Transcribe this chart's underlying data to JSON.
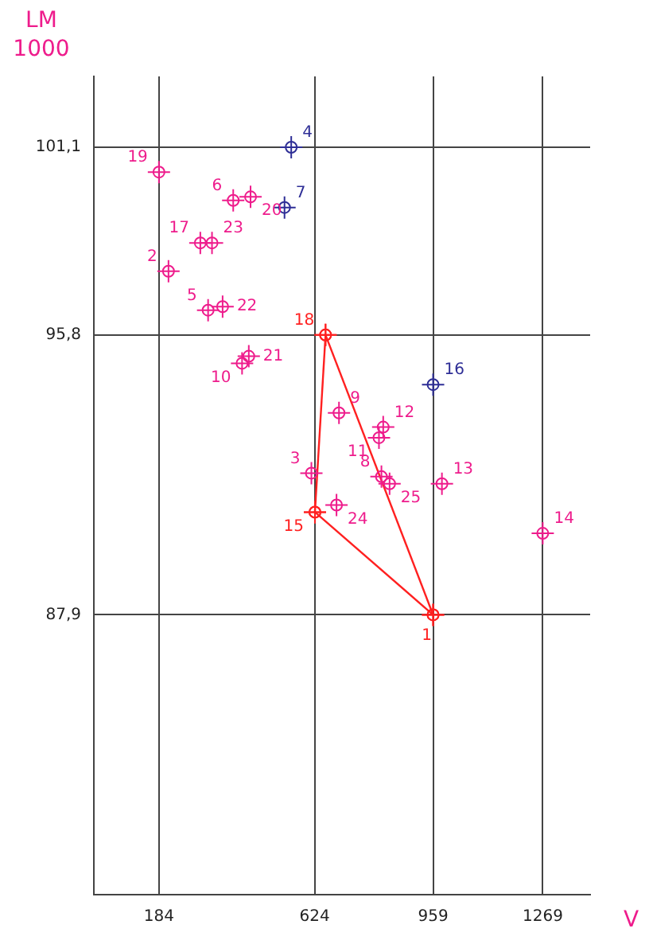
{
  "chart_data": {
    "type": "scatter",
    "xlabel": "V",
    "ylabel": "LM 1000",
    "xlim": [
      0,
      1403
    ],
    "ylim": [
      80,
      103.1
    ],
    "xticks": [
      184,
      624,
      959,
      1269
    ],
    "yticks": [
      {
        "value": 87.9,
        "label": "87,9"
      },
      {
        "value": 95.8,
        "label": "95,8"
      },
      {
        "value": 101.1,
        "label": "101,1"
      }
    ],
    "grid": true,
    "legend": false,
    "marker": "circle",
    "series": [
      {
        "color": "#ee1c8c",
        "x": [
          211,
          615,
          323,
          394,
          693,
          419,
          806,
          818,
          813,
          984,
          1269,
          301,
          184,
          443,
          438,
          364,
          334,
          686,
          836
        ],
        "values": [
          97.6,
          91.9,
          96.5,
          99.6,
          93.6,
          95.0,
          92.9,
          93.2,
          91.8,
          91.6,
          90.2,
          98.4,
          100.4,
          99.7,
          95.2,
          96.6,
          98.4,
          91.0,
          91.6
        ]
      },
      {
        "color": "#2e2e96",
        "x": [
          558,
          539,
          959
        ],
        "values": [
          101.1,
          99.4,
          94.4
        ]
      },
      {
        "type": "line",
        "color": "#ff2020",
        "x": [
          655,
          959
        ],
        "values": [
          95.8,
          87.9
        ]
      },
      {
        "type": "line",
        "color": "#ff2020",
        "x": [
          625,
          959
        ],
        "values": [
          90.8,
          87.9
        ]
      },
      {
        "type": "line",
        "color": "#ff2020",
        "x": [
          625,
          655
        ],
        "values": [
          90.8,
          95.8
        ]
      }
    ],
    "annotations": [
      {
        "text": "1",
        "x": 959,
        "y": 87.9
      },
      {
        "text": "2",
        "x": 211,
        "y": 97.6
      },
      {
        "text": "3",
        "x": 615,
        "y": 91.9
      },
      {
        "text": "4",
        "x": 558,
        "y": 101.1
      },
      {
        "text": "5",
        "x": 323,
        "y": 96.5
      },
      {
        "text": "6",
        "x": 394,
        "y": 99.6
      },
      {
        "text": "7",
        "x": 539,
        "y": 99.4
      },
      {
        "text": "8",
        "x": 813,
        "y": 91.8
      },
      {
        "text": "9",
        "x": 693,
        "y": 93.6
      },
      {
        "text": "10",
        "x": 419,
        "y": 95.0
      },
      {
        "text": "11",
        "x": 806,
        "y": 92.9
      },
      {
        "text": "12",
        "x": 818,
        "y": 93.2
      },
      {
        "text": "13",
        "x": 984,
        "y": 91.6
      },
      {
        "text": "14",
        "x": 1269,
        "y": 90.2
      },
      {
        "text": "15",
        "x": 625,
        "y": 90.8
      },
      {
        "text": "16",
        "x": 959,
        "y": 94.4
      },
      {
        "text": "17",
        "x": 301,
        "y": 98.4
      },
      {
        "text": "18",
        "x": 655,
        "y": 95.8
      },
      {
        "text": "19",
        "x": 184,
        "y": 100.4
      },
      {
        "text": "20",
        "x": 443,
        "y": 99.7
      },
      {
        "text": "21",
        "x": 438,
        "y": 95.2
      },
      {
        "text": "22",
        "x": 364,
        "y": 96.6
      },
      {
        "text": "23",
        "x": 334,
        "y": 98.4
      },
      {
        "text": "24",
        "x": 686,
        "y": 91.0
      },
      {
        "text": "25",
        "x": 836,
        "y": 91.6
      }
    ]
  }
}
